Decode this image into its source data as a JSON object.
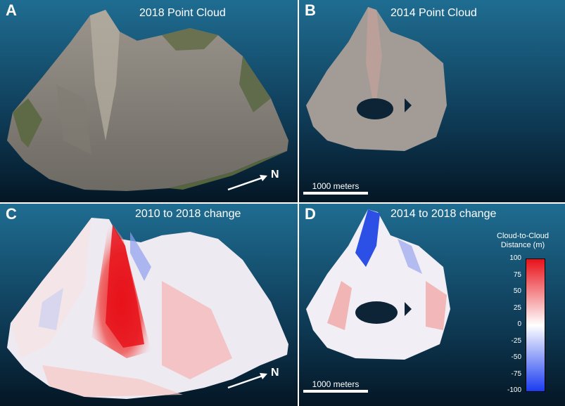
{
  "panels": [
    {
      "letter": "A",
      "title": "2018 Point Cloud"
    },
    {
      "letter": "B",
      "title": "2014 Point Cloud"
    },
    {
      "letter": "C",
      "title": "2010 to 2018 change"
    },
    {
      "letter": "D",
      "title": "2014 to 2018 change"
    }
  ],
  "scale_bar_label": "1000 meters",
  "north_label": "N",
  "colorbar": {
    "title_line1": "Cloud-to-Cloud",
    "title_line2": "Distance (m)",
    "ticks": [
      "100",
      "75",
      "50",
      "25",
      "0",
      "-25",
      "-50",
      "-75",
      "-100"
    ],
    "colors": {
      "high": "#e8121a",
      "mid": "#ffffff",
      "low": "#1a3cf0"
    }
  }
}
